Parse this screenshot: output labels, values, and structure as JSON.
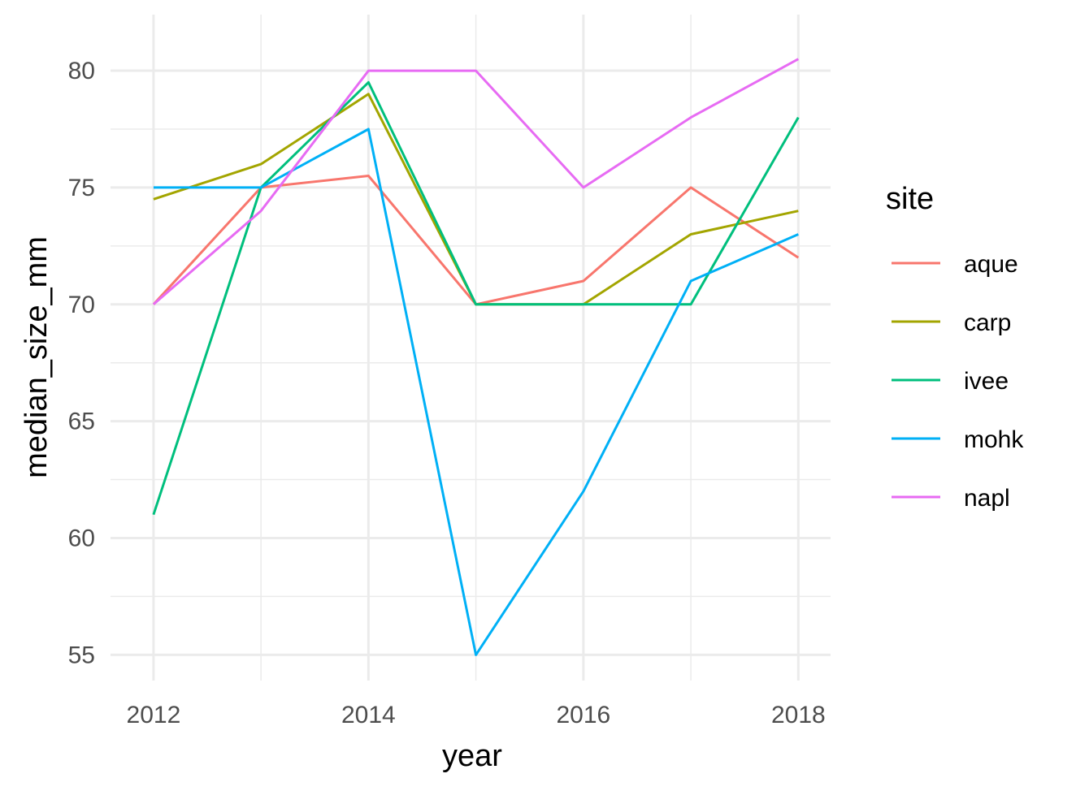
{
  "chart_data": {
    "type": "line",
    "title": "",
    "xlabel": "year",
    "ylabel": "median_size_mm",
    "x": [
      2012,
      2013,
      2014,
      2015,
      2016,
      2017,
      2018
    ],
    "xticks": [
      "2012",
      "2014",
      "2016",
      "2018"
    ],
    "yticks": [
      "55",
      "60",
      "65",
      "70",
      "75",
      "80"
    ],
    "xlim": [
      2011.6,
      2018.3
    ],
    "ylim": [
      53.9,
      82.4
    ],
    "grid": true,
    "legend": {
      "title": "site",
      "position": "right"
    },
    "series": [
      {
        "name": "aque",
        "color": "#F8766D",
        "values": [
          70,
          75,
          75.5,
          70,
          71,
          75,
          72
        ]
      },
      {
        "name": "carp",
        "color": "#A3A500",
        "values": [
          74.5,
          76,
          79,
          70,
          70,
          73,
          74
        ]
      },
      {
        "name": "ivee",
        "color": "#00BF7D",
        "values": [
          61,
          75,
          79.5,
          70,
          70,
          70,
          78
        ]
      },
      {
        "name": "mohk",
        "color": "#00B0F6",
        "values": [
          75,
          75,
          77.5,
          55,
          62,
          71,
          73
        ]
      },
      {
        "name": "napl",
        "color": "#E76BF3",
        "values": [
          70,
          74,
          80,
          80,
          75,
          78,
          80.5
        ]
      }
    ]
  }
}
